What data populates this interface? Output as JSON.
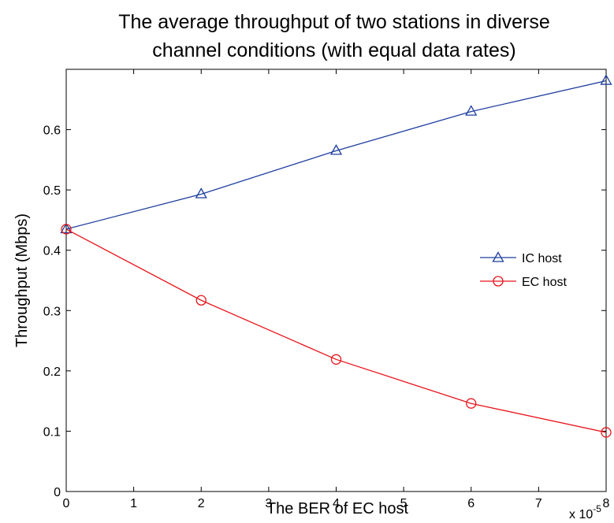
{
  "chart_data": {
    "type": "line",
    "title_lines": [
      "The average throughput of two stations in diverse",
      "channel conditions (with equal data rates)"
    ],
    "xlabel": "The BER of EC host",
    "ylabel": "Throughput (Mbps)",
    "x_multiplier_label": "x 10",
    "x_multiplier_exponent": "-5",
    "xlim": [
      0,
      8
    ],
    "ylim": [
      0,
      0.7
    ],
    "xticks": [
      0,
      1,
      2,
      3,
      4,
      5,
      6,
      7,
      8
    ],
    "yticks": [
      0,
      0.1,
      0.2,
      0.3,
      0.4,
      0.5,
      0.6
    ],
    "xtick_labels": [
      "0",
      "1",
      "2",
      "3",
      "4",
      "5",
      "6",
      "7",
      "8"
    ],
    "ytick_labels": [
      "0",
      "0.1",
      "0.2",
      "0.3",
      "0.4",
      "0.5",
      "0.6"
    ],
    "x": [
      0,
      2,
      4,
      6,
      8
    ],
    "series": [
      {
        "name": "IC host",
        "marker": "triangle",
        "color": "#1f3f9f",
        "values": [
          0.435,
          0.493,
          0.565,
          0.63,
          0.681
        ]
      },
      {
        "name": "EC host",
        "marker": "circle",
        "color": "#e8141b",
        "values": [
          0.435,
          0.317,
          0.219,
          0.146,
          0.098
        ]
      }
    ],
    "legend_position": "right",
    "grid": false
  }
}
